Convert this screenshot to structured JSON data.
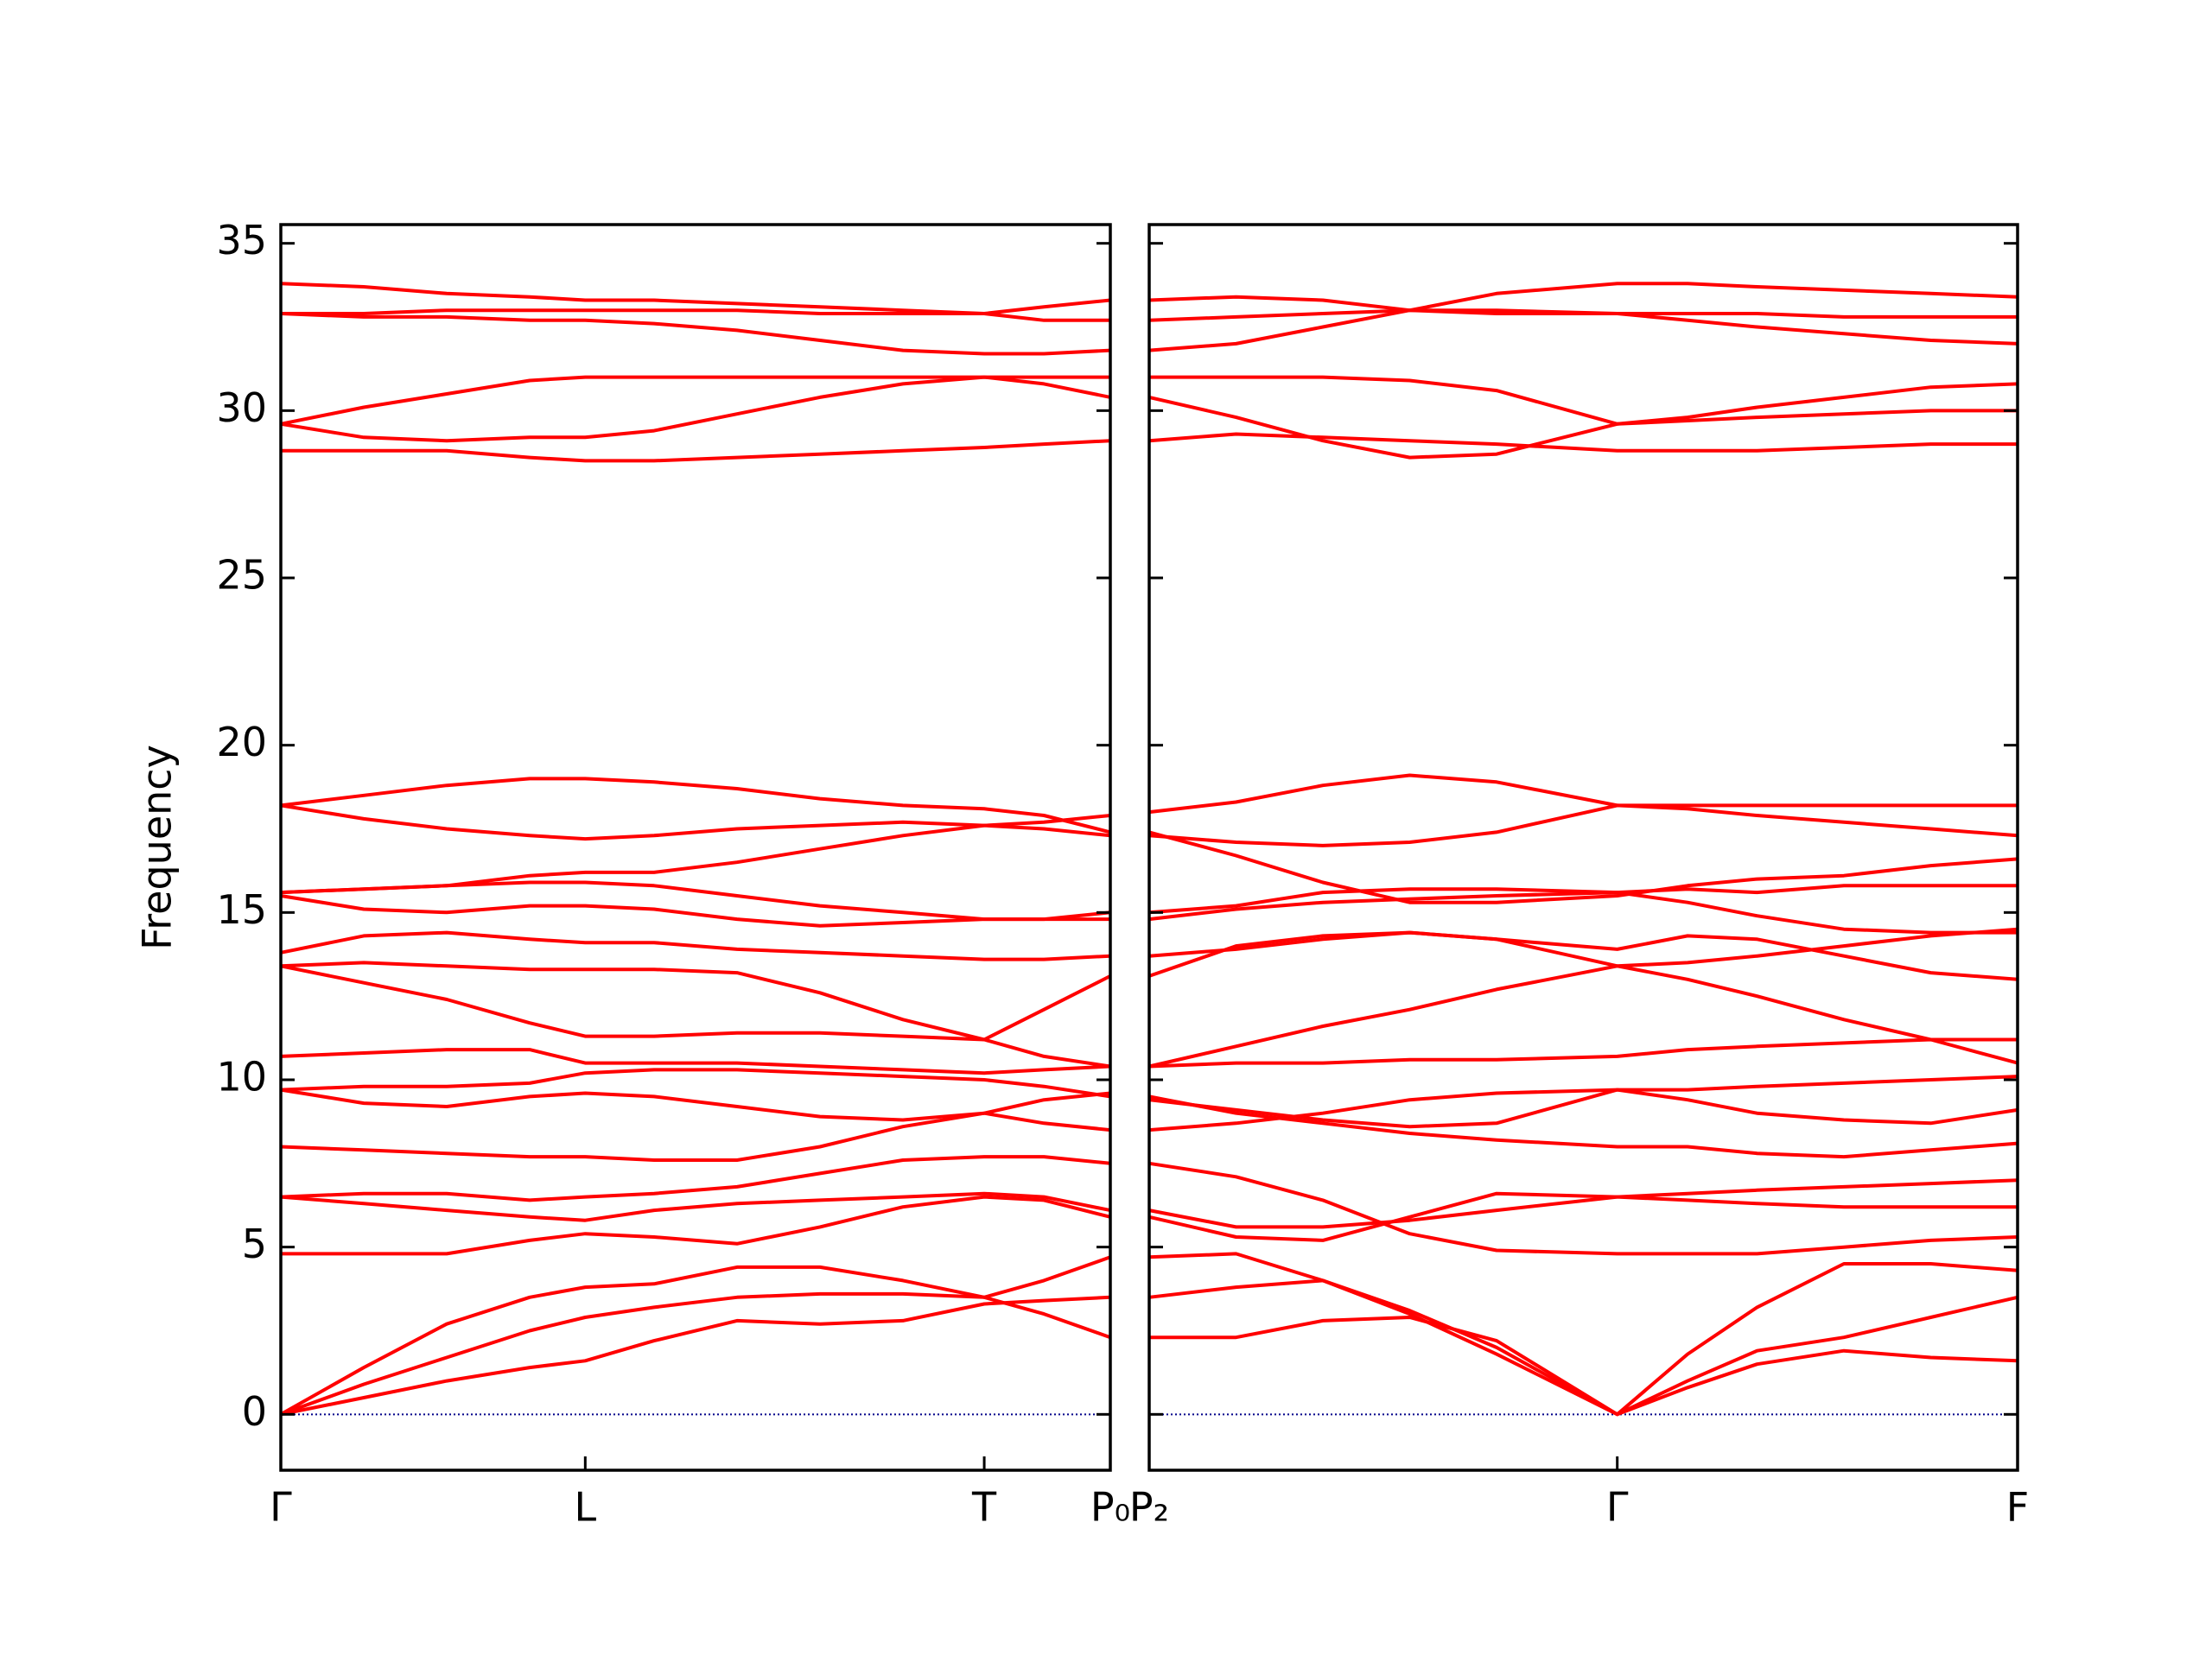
{
  "chart_data": [
    {
      "type": "line",
      "ylabel": "Frequency",
      "color": "#ff0000",
      "x": [
        0,
        0.1,
        0.2,
        0.3,
        0.367,
        0.45,
        0.55,
        0.65,
        0.75,
        0.848,
        0.92,
        1.0
      ],
      "xlim": [
        0,
        1
      ],
      "ylim": [
        -1.67,
        35.56
      ],
      "xticks": [
        {
          "value": 0,
          "label": "Γ"
        },
        {
          "value": 0.367,
          "label": "L"
        },
        {
          "value": 0.848,
          "label": "T"
        },
        {
          "value": 1.0,
          "label": "P₀"
        }
      ],
      "yticks": [
        0,
        5,
        10,
        15,
        20,
        25,
        30,
        35
      ],
      "show_ytick_labels": true,
      "zero_line": {
        "value": 0,
        "color": "#00008b"
      },
      "series": [
        {
          "values": [
            0,
            0.5,
            1.0,
            1.4,
            1.6,
            2.2,
            2.8,
            2.7,
            2.8,
            3.3,
            3.4,
            3.5
          ]
        },
        {
          "values": [
            0,
            0.9,
            1.7,
            2.5,
            2.9,
            3.2,
            3.5,
            3.6,
            3.6,
            3.5,
            4.0,
            4.7
          ]
        },
        {
          "values": [
            0,
            1.4,
            2.7,
            3.5,
            3.8,
            3.9,
            4.4,
            4.4,
            4.0,
            3.5,
            3.0,
            2.3
          ]
        },
        {
          "values": [
            4.8,
            4.8,
            4.8,
            5.2,
            5.4,
            5.3,
            5.1,
            5.6,
            6.2,
            6.5,
            6.4,
            5.9
          ]
        },
        {
          "values": [
            6.5,
            6.3,
            6.1,
            5.9,
            5.8,
            6.1,
            6.3,
            6.4,
            6.5,
            6.6,
            6.5,
            6.1
          ]
        },
        {
          "values": [
            6.5,
            6.6,
            6.6,
            6.4,
            6.5,
            6.6,
            6.8,
            7.2,
            7.6,
            7.7,
            7.7,
            7.5
          ]
        },
        {
          "values": [
            8.0,
            7.9,
            7.8,
            7.7,
            7.7,
            7.6,
            7.6,
            8.0,
            8.6,
            9.0,
            8.7,
            8.5
          ]
        },
        {
          "values": [
            9.7,
            9.3,
            9.2,
            9.5,
            9.6,
            9.5,
            9.2,
            8.9,
            8.8,
            9.0,
            9.4,
            9.6
          ]
        },
        {
          "values": [
            9.7,
            9.8,
            9.8,
            9.9,
            10.2,
            10.3,
            10.3,
            10.2,
            10.1,
            10.0,
            9.8,
            9.5
          ]
        },
        {
          "values": [
            10.7,
            10.8,
            10.9,
            10.9,
            10.5,
            10.5,
            10.5,
            10.4,
            10.3,
            10.2,
            10.3,
            10.4
          ]
        },
        {
          "values": [
            13.4,
            12.9,
            12.4,
            11.7,
            11.3,
            11.3,
            11.4,
            11.4,
            11.3,
            11.2,
            12.1,
            13.1
          ]
        },
        {
          "values": [
            13.4,
            13.5,
            13.4,
            13.3,
            13.3,
            13.3,
            13.2,
            12.6,
            11.8,
            11.2,
            10.7,
            10.4
          ]
        },
        {
          "values": [
            13.8,
            14.3,
            14.4,
            14.2,
            14.1,
            14.1,
            13.9,
            13.8,
            13.7,
            13.6,
            13.6,
            13.7
          ]
        },
        {
          "values": [
            15.5,
            15.1,
            15.0,
            15.2,
            15.2,
            15.1,
            14.8,
            14.6,
            14.7,
            14.8,
            14.8,
            14.8
          ]
        },
        {
          "values": [
            15.6,
            15.7,
            15.8,
            15.9,
            15.9,
            15.8,
            15.5,
            15.2,
            15.0,
            14.8,
            14.8,
            15.0
          ]
        },
        {
          "values": [
            15.6,
            15.7,
            15.8,
            16.1,
            16.2,
            16.2,
            16.5,
            16.9,
            17.3,
            17.6,
            17.7,
            17.9
          ]
        },
        {
          "values": [
            18.2,
            17.8,
            17.5,
            17.3,
            17.2,
            17.3,
            17.5,
            17.6,
            17.7,
            17.6,
            17.5,
            17.3
          ]
        },
        {
          "values": [
            18.2,
            18.5,
            18.8,
            19.0,
            19.0,
            18.9,
            18.7,
            18.4,
            18.2,
            18.1,
            17.9,
            17.4
          ]
        },
        {
          "values": [
            28.8,
            28.8,
            28.8,
            28.6,
            28.5,
            28.5,
            28.6,
            28.7,
            28.8,
            28.9,
            29.0,
            29.1
          ]
        },
        {
          "values": [
            29.6,
            29.2,
            29.1,
            29.2,
            29.2,
            29.4,
            29.9,
            30.4,
            30.8,
            31.0,
            30.8,
            30.4
          ]
        },
        {
          "values": [
            29.6,
            30.1,
            30.5,
            30.9,
            31.0,
            31.0,
            31.0,
            31.0,
            31.0,
            31.0,
            31.0,
            31.0
          ]
        },
        {
          "values": [
            32.9,
            32.8,
            32.8,
            32.7,
            32.7,
            32.6,
            32.4,
            32.1,
            31.8,
            31.7,
            31.7,
            31.8
          ]
        },
        {
          "values": [
            32.9,
            32.9,
            33.0,
            33.0,
            33.0,
            33.0,
            33.0,
            32.9,
            32.9,
            32.9,
            32.7,
            32.7
          ]
        },
        {
          "values": [
            33.8,
            33.7,
            33.5,
            33.4,
            33.3,
            33.3,
            33.2,
            33.1,
            33.0,
            32.9,
            33.1,
            33.3
          ]
        }
      ]
    },
    {
      "type": "line",
      "color": "#ff0000",
      "x": [
        0,
        0.1,
        0.2,
        0.3,
        0.4,
        0.539,
        0.62,
        0.7,
        0.8,
        0.9,
        1.0
      ],
      "xlim": [
        0,
        1
      ],
      "ylim": [
        -1.67,
        35.56
      ],
      "xticks": [
        {
          "value": 0,
          "label": "P₂"
        },
        {
          "value": 0.539,
          "label": "Γ"
        },
        {
          "value": 1.0,
          "label": "F"
        }
      ],
      "yticks": [
        0,
        5,
        10,
        15,
        20,
        25,
        30,
        35
      ],
      "show_ytick_labels": false,
      "zero_line": {
        "value": 0,
        "color": "#00008b"
      },
      "series": [
        {
          "values": [
            2.3,
            2.3,
            2.8,
            2.9,
            2.2,
            0,
            0.8,
            1.5,
            1.9,
            1.7,
            1.6
          ]
        },
        {
          "values": [
            3.5,
            3.8,
            4.0,
            3.1,
            2.0,
            0,
            1.0,
            1.9,
            2.3,
            2.9,
            3.5
          ]
        },
        {
          "values": [
            4.7,
            4.8,
            4.0,
            3.0,
            1.8,
            0,
            1.8,
            3.2,
            4.5,
            4.5,
            4.3
          ]
        },
        {
          "values": [
            6.1,
            5.6,
            5.6,
            5.8,
            6.1,
            6.5,
            6.6,
            6.7,
            6.8,
            6.9,
            7.0
          ]
        },
        {
          "values": [
            5.9,
            5.3,
            5.2,
            5.9,
            6.6,
            6.5,
            6.4,
            6.3,
            6.2,
            6.2,
            6.2
          ]
        },
        {
          "values": [
            7.5,
            7.1,
            6.4,
            5.4,
            4.9,
            4.8,
            4.8,
            4.8,
            5.0,
            5.2,
            5.3
          ]
        },
        {
          "values": [
            8.5,
            8.7,
            9.0,
            9.4,
            9.6,
            9.7,
            9.4,
            9.0,
            8.8,
            8.7,
            9.1
          ]
        },
        {
          "values": [
            9.4,
            9.1,
            8.8,
            8.6,
            8.7,
            9.7,
            9.7,
            9.8,
            9.9,
            10.0,
            10.1
          ]
        },
        {
          "values": [
            9.5,
            9.0,
            8.7,
            8.4,
            8.2,
            8.0,
            8.0,
            7.8,
            7.7,
            7.9,
            8.1
          ]
        },
        {
          "values": [
            10.4,
            10.5,
            10.5,
            10.6,
            10.6,
            10.7,
            10.9,
            11.0,
            11.1,
            11.2,
            10.5
          ]
        },
        {
          "values": [
            10.4,
            11.0,
            11.6,
            12.1,
            12.7,
            13.4,
            13.0,
            12.5,
            11.8,
            11.2,
            11.2
          ]
        },
        {
          "values": [
            13.1,
            14.0,
            14.3,
            14.4,
            14.2,
            13.9,
            14.3,
            14.2,
            13.7,
            13.2,
            13.0
          ]
        },
        {
          "values": [
            13.7,
            13.9,
            14.2,
            14.4,
            14.2,
            13.4,
            13.5,
            13.7,
            14.0,
            14.3,
            14.5
          ]
        },
        {
          "values": [
            14.8,
            15.1,
            15.3,
            15.4,
            15.5,
            15.6,
            15.3,
            14.9,
            14.5,
            14.4,
            14.4
          ]
        },
        {
          "values": [
            15.0,
            15.2,
            15.6,
            15.7,
            15.7,
            15.6,
            15.7,
            15.6,
            15.8,
            15.8,
            15.8
          ]
        },
        {
          "values": [
            17.4,
            16.7,
            15.9,
            15.3,
            15.3,
            15.5,
            15.8,
            16.0,
            16.1,
            16.4,
            16.6
          ]
        },
        {
          "values": [
            17.3,
            17.1,
            17.0,
            17.1,
            17.4,
            18.2,
            18.1,
            17.9,
            17.7,
            17.5,
            17.3
          ]
        },
        {
          "values": [
            18.0,
            18.3,
            18.8,
            19.1,
            18.9,
            18.2,
            18.2,
            18.2,
            18.2,
            18.2,
            18.2
          ]
        },
        {
          "values": [
            29.1,
            29.3,
            29.2,
            29.1,
            29.0,
            28.8,
            28.8,
            28.8,
            28.9,
            29.0,
            29.0
          ]
        },
        {
          "values": [
            30.4,
            29.8,
            29.1,
            28.6,
            28.7,
            29.6,
            29.7,
            29.8,
            29.9,
            30.0,
            30.0
          ]
        },
        {
          "values": [
            31.0,
            31.0,
            31.0,
            30.9,
            30.6,
            29.6,
            29.8,
            30.1,
            30.4,
            30.7,
            30.8
          ]
        },
        {
          "values": [
            31.8,
            32.0,
            32.5,
            33.0,
            32.9,
            32.9,
            32.7,
            32.5,
            32.3,
            32.1,
            32.0
          ]
        },
        {
          "values": [
            32.7,
            32.8,
            32.9,
            33.0,
            33.0,
            32.9,
            32.9,
            32.9,
            32.8,
            32.8,
            32.8
          ]
        },
        {
          "values": [
            33.3,
            33.4,
            33.3,
            33.0,
            33.5,
            33.8,
            33.8,
            33.7,
            33.6,
            33.5,
            33.4
          ]
        }
      ]
    }
  ]
}
